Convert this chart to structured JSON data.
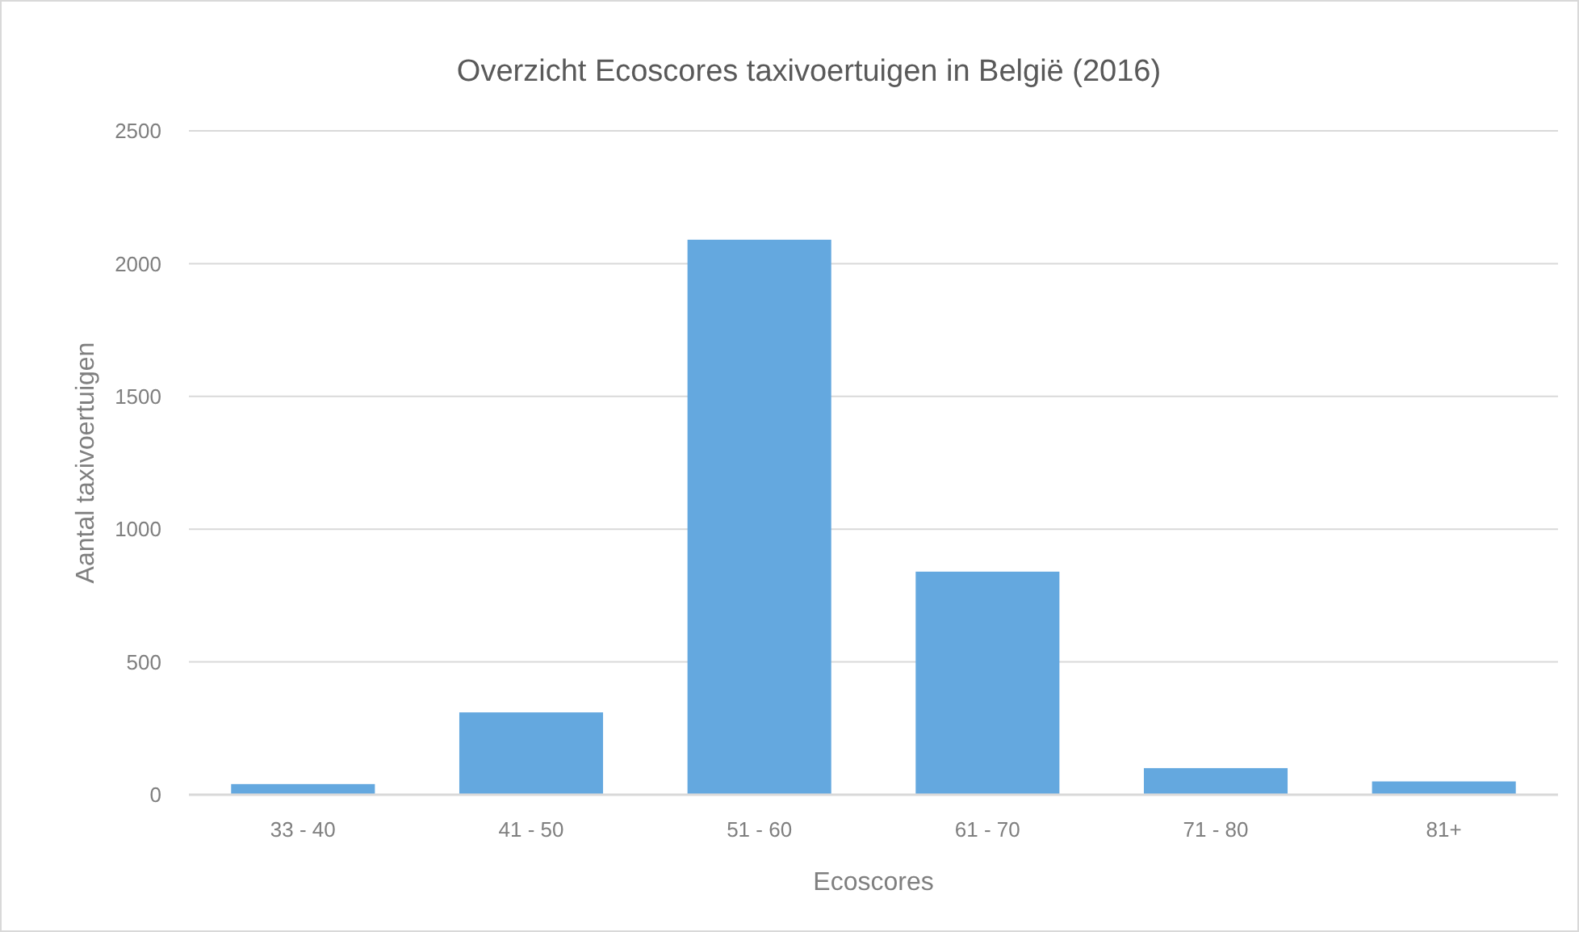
{
  "chart_data": {
    "type": "bar",
    "title": "Overzicht Ecoscores taxivoertuigen in België (2016)",
    "xlabel": "Ecoscores",
    "ylabel": "Aantal taxivoertuigen",
    "categories": [
      "33 - 40",
      "41 - 50",
      "51 - 60",
      "61 - 70",
      "71 - 80",
      "81+"
    ],
    "values": [
      40,
      310,
      2090,
      840,
      100,
      50
    ],
    "color": "#64a8df",
    "ylim": [
      0,
      2500
    ],
    "yticks": [
      0,
      500,
      1000,
      1500,
      2000,
      2500
    ],
    "grid": "y"
  }
}
